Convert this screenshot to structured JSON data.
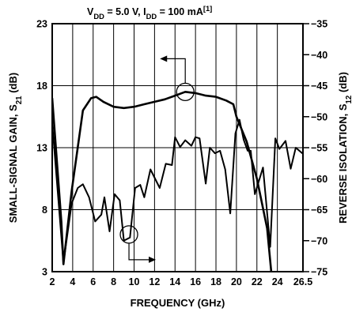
{
  "chart_data": {
    "type": "line",
    "title": {
      "parts": [
        {
          "text": "V",
          "sub": false
        },
        {
          "text": "DD",
          "sub": true
        },
        {
          "text": " = 5.0 V, I",
          "sub": false
        },
        {
          "text": "DD",
          "sub": true
        },
        {
          "text": " = 100 mA",
          "sub": false
        },
        {
          "text": "[1]",
          "sup": true
        }
      ]
    },
    "xlabel": "FREQUENCY (GHz)",
    "ylabel_left": {
      "parts": [
        {
          "text": "SMALL-SIGNAL GAIN, S",
          "sub": false
        },
        {
          "text": "21",
          "sub": true
        },
        {
          "text": " (dB)",
          "sub": false
        }
      ]
    },
    "ylabel_right": {
      "parts": [
        {
          "text": "REVERSE ISOLATION, S",
          "sub": false
        },
        {
          "text": "12",
          "sub": true
        },
        {
          "text": " (dB)",
          "sub": false
        }
      ]
    },
    "xlim": [
      2,
      26.5
    ],
    "ylim_left": [
      3,
      23
    ],
    "ylim_right": [
      -75,
      -35
    ],
    "x_ticks": [
      2,
      4,
      6,
      8,
      10,
      12,
      14,
      16,
      18,
      20,
      22,
      24,
      26.5
    ],
    "x_tick_labels": [
      "2",
      "4",
      "6",
      "8",
      "10",
      "12",
      "14",
      "16",
      "18",
      "20",
      "22",
      "24",
      "26.5"
    ],
    "y_left_ticks": [
      3,
      8,
      13,
      18,
      23
    ],
    "y_left_tick_labels": [
      "3",
      "8",
      "13",
      "18",
      "23"
    ],
    "y_right_ticks": [
      -75,
      -70,
      -65,
      -60,
      -55,
      -50,
      -45,
      -40,
      -35
    ],
    "y_right_tick_labels": [
      "−75",
      "−70",
      "−65",
      "−60",
      "−55",
      "−50",
      "−45",
      "−40",
      "−35"
    ],
    "grid": true,
    "series": [
      {
        "axis": "left",
        "points": [
          [
            2,
            17.0
          ],
          [
            2.9,
            7.0
          ],
          [
            3.1,
            3.6
          ],
          [
            3.9,
            9.5
          ],
          [
            5.0,
            16.0
          ],
          [
            5.8,
            17.0
          ],
          [
            6.3,
            17.1
          ],
          [
            7.0,
            16.7
          ],
          [
            8.0,
            16.3
          ],
          [
            9.0,
            16.2
          ],
          [
            10.0,
            16.3
          ],
          [
            11.0,
            16.5
          ],
          [
            12.0,
            16.7
          ],
          [
            13.0,
            16.9
          ],
          [
            14.0,
            17.2
          ],
          [
            15.0,
            17.5
          ],
          [
            16.0,
            17.4
          ],
          [
            17.0,
            17.2
          ],
          [
            18.0,
            17.1
          ],
          [
            19.0,
            16.8
          ],
          [
            19.7,
            16.5
          ],
          [
            20.0,
            15.5
          ],
          [
            21.0,
            13.5
          ],
          [
            22.0,
            10.5
          ],
          [
            23.0,
            6.5
          ],
          [
            23.4,
            3.0
          ]
        ]
      },
      {
        "axis": "right",
        "points": [
          [
            2,
            -51.0
          ],
          [
            3.1,
            -73.6
          ],
          [
            3.9,
            -64.0
          ],
          [
            4.5,
            -61.5
          ],
          [
            5.0,
            -60.9
          ],
          [
            5.6,
            -63.0
          ],
          [
            6.2,
            -66.9
          ],
          [
            6.8,
            -65.8
          ],
          [
            7.1,
            -63.0
          ],
          [
            7.6,
            -68.5
          ],
          [
            8.1,
            -62.5
          ],
          [
            8.6,
            -63.5
          ],
          [
            9.0,
            -70.0
          ],
          [
            9.6,
            -69.5
          ],
          [
            10.1,
            -61.5
          ],
          [
            10.6,
            -61.0
          ],
          [
            11.0,
            -63.0
          ],
          [
            11.6,
            -58.5
          ],
          [
            12.5,
            -61.5
          ],
          [
            13.1,
            -57.6
          ],
          [
            13.7,
            -57.8
          ],
          [
            14.0,
            -53.3
          ],
          [
            14.5,
            -54.9
          ],
          [
            15.0,
            -53.8
          ],
          [
            15.6,
            -54.7
          ],
          [
            16.0,
            -53.3
          ],
          [
            16.4,
            -53.5
          ],
          [
            17.0,
            -60.8
          ],
          [
            17.4,
            -55.0
          ],
          [
            17.9,
            -55.9
          ],
          [
            18.4,
            -55.5
          ],
          [
            18.9,
            -58.5
          ],
          [
            19.4,
            -65.6
          ],
          [
            19.9,
            -52.7
          ],
          [
            20.3,
            -50.5
          ],
          [
            20.7,
            -53.7
          ],
          [
            21.1,
            -55.5
          ],
          [
            21.4,
            -55.5
          ],
          [
            21.8,
            -62.5
          ],
          [
            22.6,
            -58.2
          ],
          [
            23.3,
            -71.0
          ],
          [
            23.8,
            -53.5
          ],
          [
            24.2,
            -55.2
          ],
          [
            24.8,
            -53.9
          ],
          [
            25.3,
            -58.4
          ],
          [
            25.8,
            -55.0
          ],
          [
            26.5,
            -56.0
          ]
        ]
      }
    ],
    "annotations": [
      {
        "kind": "circle-with-arrow",
        "series": 0,
        "at": [
          15.0,
          17.5
        ],
        "arrow_to": "left-axis"
      },
      {
        "kind": "circle-with-arrow",
        "series": 1,
        "at": [
          9.5,
          -69.0
        ],
        "arrow_to": "right-axis"
      }
    ]
  }
}
